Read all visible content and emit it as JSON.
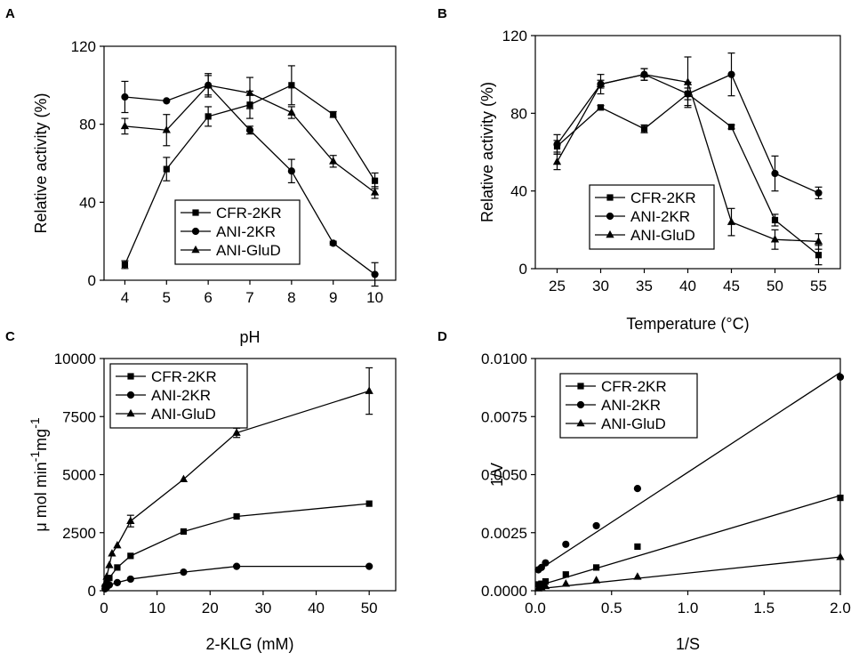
{
  "chart_data": [
    {
      "panel": "A",
      "type": "line",
      "xlabel": "pH",
      "ylabel": "Relative activity (%)",
      "xlim": [
        3.5,
        10.5
      ],
      "ylim": [
        0,
        120
      ],
      "xticks": [
        4,
        5,
        6,
        7,
        8,
        9,
        10
      ],
      "yticks": [
        0,
        40,
        80,
        120
      ],
      "legend_position": "bottom-center",
      "series": [
        {
          "name": "CFR-2KR",
          "marker": "square",
          "x": [
            4,
            5,
            6,
            7,
            8,
            9,
            10
          ],
          "y": [
            8,
            57,
            84,
            90,
            100,
            85,
            51
          ],
          "err": [
            2,
            6,
            5,
            7,
            10,
            1.5,
            4
          ]
        },
        {
          "name": "ANI-2KR",
          "marker": "circle",
          "x": [
            4,
            5,
            6,
            7,
            8,
            9,
            10
          ],
          "y": [
            94,
            92,
            100,
            77,
            56,
            19,
            3
          ],
          "err": [
            8,
            0,
            6,
            2,
            6,
            1,
            6
          ]
        },
        {
          "name": "ANI-GluD",
          "marker": "triangle",
          "x": [
            4,
            5,
            6,
            7,
            8,
            9,
            10
          ],
          "y": [
            79,
            77,
            100,
            96,
            86,
            61,
            45
          ],
          "err": [
            4,
            8,
            5,
            8,
            3,
            3,
            3
          ]
        }
      ]
    },
    {
      "panel": "B",
      "type": "line",
      "xlabel": "Temperature (°C)",
      "ylabel": "Relative activity (%)",
      "xlim": [
        22.5,
        57.5
      ],
      "ylim": [
        0,
        120
      ],
      "xticks": [
        25,
        30,
        35,
        40,
        45,
        50,
        55
      ],
      "yticks": [
        0,
        40,
        80,
        120
      ],
      "legend_position": "bottom-center",
      "series": [
        {
          "name": "CFR-2KR",
          "marker": "square",
          "x": [
            25,
            30,
            35,
            40,
            45,
            50,
            55
          ],
          "y": [
            63,
            83,
            72,
            90,
            73,
            25,
            7
          ],
          "err": [
            3,
            1,
            2,
            3,
            1,
            3,
            5
          ]
        },
        {
          "name": "ANI-2KR",
          "marker": "circle",
          "x": [
            25,
            30,
            35,
            40,
            45,
            50,
            55
          ],
          "y": [
            64,
            95,
            100,
            90,
            100,
            49,
            39
          ],
          "err": [
            5,
            5,
            3,
            6,
            11,
            9,
            3
          ]
        },
        {
          "name": "ANI-GluD",
          "marker": "triangle",
          "x": [
            25,
            30,
            35,
            40,
            45,
            50,
            55
          ],
          "y": [
            55,
            95,
            100,
            96,
            24,
            15,
            14
          ],
          "err": [
            4,
            2,
            3,
            13,
            7,
            5,
            4
          ]
        }
      ]
    },
    {
      "panel": "C",
      "type": "line",
      "xlabel": "2-KLG (mM)",
      "ylabel_main": "μ mol min",
      "ylabel_sup1": "-1",
      "ylabel_mid": "mg",
      "ylabel_sup2": "-1",
      "xlim": [
        0,
        55
      ],
      "ylim": [
        0,
        10000
      ],
      "xticks": [
        0,
        10,
        20,
        30,
        40,
        50
      ],
      "yticks": [
        0,
        2500,
        5000,
        7500,
        10000
      ],
      "legend_position": "top-left",
      "series": [
        {
          "name": "CFR-2KR",
          "marker": "square",
          "x": [
            0.2,
            0.5,
            1,
            2.5,
            5,
            15,
            25,
            50
          ],
          "y": [
            150,
            300,
            550,
            1000,
            1500,
            2550,
            3200,
            3750
          ],
          "err": [
            0,
            0,
            0,
            0,
            0,
            0,
            0,
            0
          ]
        },
        {
          "name": "ANI-2KR",
          "marker": "circle",
          "x": [
            0.2,
            0.5,
            1,
            2.5,
            5,
            15,
            25,
            50
          ],
          "y": [
            80,
            150,
            250,
            350,
            500,
            800,
            1050,
            1050
          ],
          "err": [
            0,
            0,
            0,
            0,
            0,
            0,
            0,
            0
          ]
        },
        {
          "name": "ANI-GluD",
          "marker": "triangle",
          "x": [
            0.2,
            0.5,
            1,
            1.5,
            2.5,
            5,
            15,
            25,
            50
          ],
          "y": [
            300,
            600,
            1100,
            1600,
            1950,
            3000,
            4800,
            6800,
            8600
          ],
          "err": [
            0,
            0,
            0,
            0,
            0,
            250,
            0,
            200,
            1000
          ]
        }
      ]
    },
    {
      "panel": "D",
      "type": "scatter",
      "xlabel": "1/S",
      "ylabel": "1/V",
      "xlim": [
        0,
        2
      ],
      "ylim": [
        0,
        0.01
      ],
      "xticks": [
        "0.0",
        "0.5",
        "1.0",
        "1.5",
        "2.0"
      ],
      "xtick_values": [
        0,
        0.5,
        1,
        1.5,
        2
      ],
      "yticks": [
        "0.0000",
        "0.0025",
        "0.0050",
        "0.0075",
        "0.0100"
      ],
      "ytick_values": [
        0,
        0.0025,
        0.005,
        0.0075,
        0.01
      ],
      "legend_position": "top-left",
      "series": [
        {
          "name": "CFR-2KR",
          "marker": "square",
          "x": [
            0.02,
            0.04,
            0.067,
            0.2,
            0.4,
            0.67,
            2.0
          ],
          "y": [
            0.00027,
            0.0003,
            0.0004,
            0.0007,
            0.001,
            0.0019,
            0.004
          ],
          "fit": [
            [
              0,
              0.00018
            ],
            [
              2.0,
              0.0041
            ]
          ]
        },
        {
          "name": "ANI-2KR",
          "marker": "circle",
          "x": [
            0.02,
            0.04,
            0.067,
            0.2,
            0.4,
            0.67,
            2.0
          ],
          "y": [
            0.0009,
            0.001,
            0.0012,
            0.002,
            0.0028,
            0.0044,
            0.0092
          ],
          "fit": [
            [
              0,
              0.0008
            ],
            [
              2.0,
              0.0094
            ]
          ]
        },
        {
          "name": "ANI-GluD",
          "marker": "triangle",
          "x": [
            0.02,
            0.04,
            0.067,
            0.2,
            0.4,
            0.67,
            2.0
          ],
          "y": [
            0.0001,
            0.00015,
            0.0002,
            0.0003,
            0.00045,
            0.0006,
            0.00145
          ],
          "fit": [
            [
              0,
              7e-05
            ],
            [
              2.0,
              0.00145
            ]
          ]
        }
      ]
    }
  ]
}
